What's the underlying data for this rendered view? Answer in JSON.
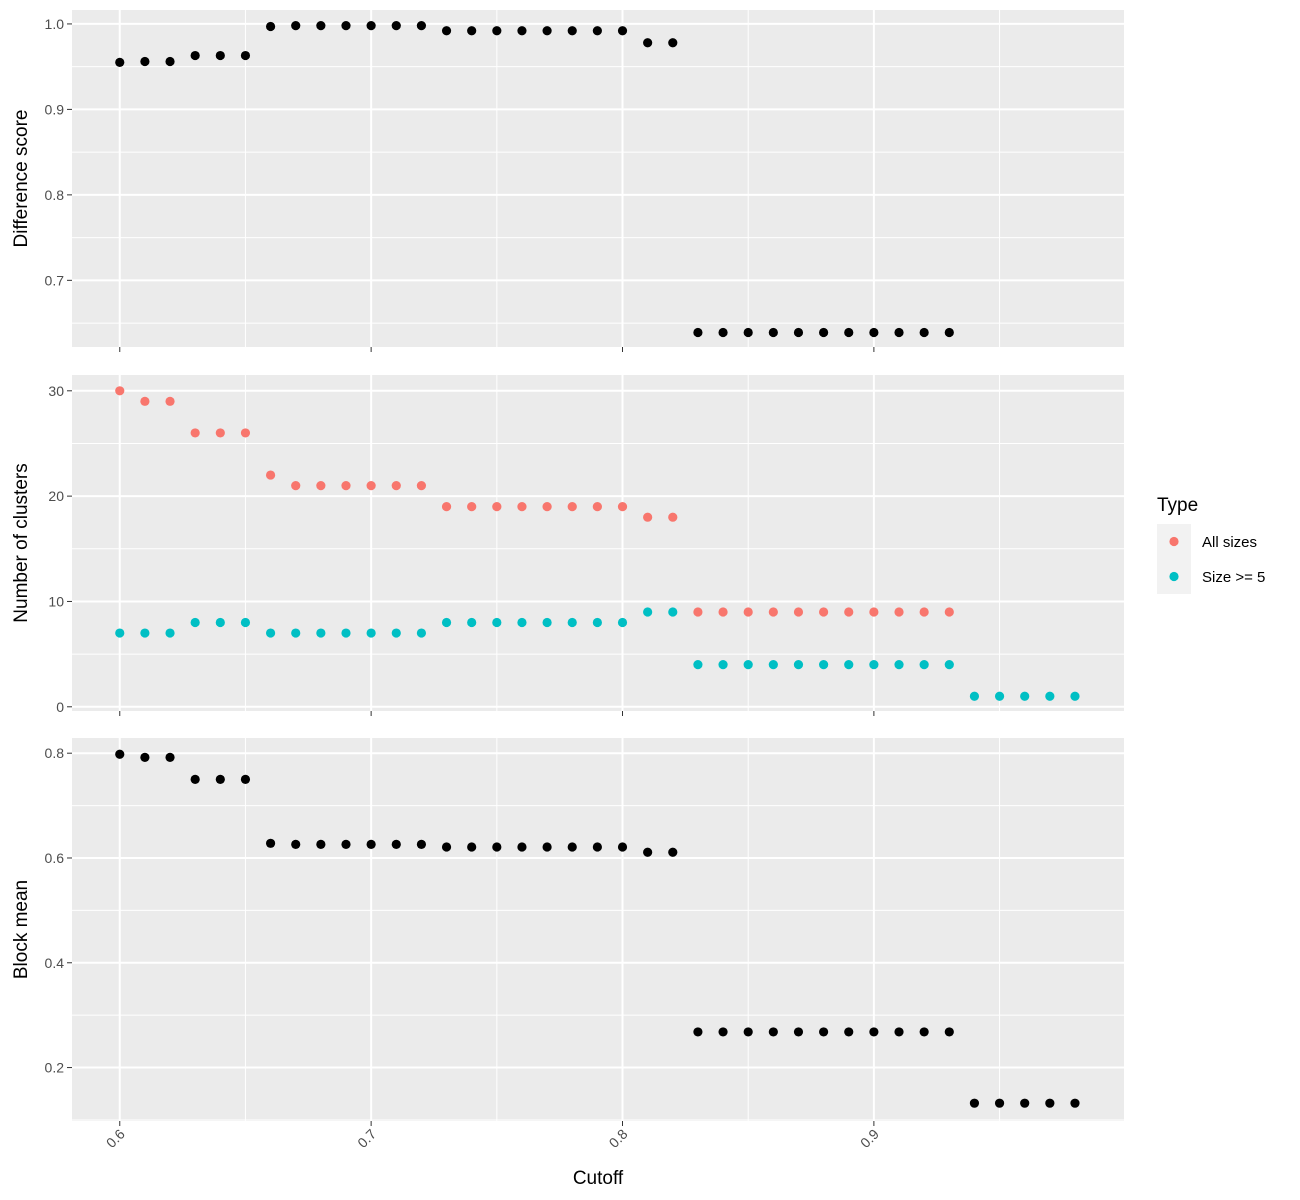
{
  "chart_data": {
    "type": "scatter",
    "xlabel": "Cutoff",
    "x_ticks": [
      0.6,
      0.7,
      0.8,
      0.9
    ],
    "xlim": [
      0.581,
      0.9995
    ],
    "grid": true,
    "legend": {
      "title": "Type",
      "position": "right",
      "entries": [
        {
          "label": "All sizes",
          "color": "#F8766D"
        },
        {
          "label": "Size >= 5",
          "color": "#00BFC4"
        }
      ]
    },
    "panels": [
      {
        "ylabel": "Difference score",
        "ylim": [
          0.622,
          1.0163
        ],
        "y_ticks": [
          0.7,
          0.8,
          0.9,
          1.0
        ],
        "y_tick_labels": [
          "0.7",
          "0.8",
          "0.9",
          "1.0"
        ],
        "series": [
          {
            "color": "#000000",
            "x": [
              0.6,
              0.61,
              0.62,
              0.63,
              0.64,
              0.65,
              0.66,
              0.67,
              0.68,
              0.69,
              0.7,
              0.71,
              0.72,
              0.73,
              0.74,
              0.75,
              0.76,
              0.77,
              0.78,
              0.79,
              0.8,
              0.81,
              0.82,
              0.83,
              0.84,
              0.85,
              0.86,
              0.87,
              0.88,
              0.89,
              0.9,
              0.91,
              0.92,
              0.93
            ],
            "y": [
              0.955,
              0.956,
              0.956,
              0.963,
              0.963,
              0.963,
              0.997,
              0.998,
              0.998,
              0.998,
              0.998,
              0.998,
              0.998,
              0.992,
              0.992,
              0.992,
              0.992,
              0.992,
              0.992,
              0.992,
              0.992,
              0.978,
              0.978,
              0.639,
              0.639,
              0.639,
              0.639,
              0.639,
              0.639,
              0.639,
              0.639,
              0.639,
              0.639,
              0.639
            ]
          }
        ]
      },
      {
        "ylabel": "Number of clusters",
        "ylim": [
          -0.4,
          31.5
        ],
        "y_ticks": [
          0,
          10,
          20,
          30
        ],
        "y_tick_labels": [
          "0",
          "10",
          "20",
          "30"
        ],
        "series": [
          {
            "name": "All sizes",
            "color": "#F8766D",
            "x": [
              0.6,
              0.61,
              0.62,
              0.63,
              0.64,
              0.65,
              0.66,
              0.67,
              0.68,
              0.69,
              0.7,
              0.71,
              0.72,
              0.73,
              0.74,
              0.75,
              0.76,
              0.77,
              0.78,
              0.79,
              0.8,
              0.81,
              0.82,
              0.83,
              0.84,
              0.85,
              0.86,
              0.87,
              0.88,
              0.89,
              0.9,
              0.91,
              0.92,
              0.93
            ],
            "y": [
              30,
              29,
              29,
              26,
              26,
              26,
              22,
              21,
              21,
              21,
              21,
              21,
              21,
              19,
              19,
              19,
              19,
              19,
              19,
              19,
              19,
              18,
              18,
              9,
              9,
              9,
              9,
              9,
              9,
              9,
              9,
              9,
              9,
              9
            ]
          },
          {
            "name": "Size >= 5",
            "color": "#00BFC4",
            "x": [
              0.6,
              0.61,
              0.62,
              0.63,
              0.64,
              0.65,
              0.66,
              0.67,
              0.68,
              0.69,
              0.7,
              0.71,
              0.72,
              0.73,
              0.74,
              0.75,
              0.76,
              0.77,
              0.78,
              0.79,
              0.8,
              0.81,
              0.82,
              0.83,
              0.84,
              0.85,
              0.86,
              0.87,
              0.88,
              0.89,
              0.9,
              0.91,
              0.92,
              0.93,
              0.94,
              0.95,
              0.96,
              0.97,
              0.98
            ],
            "y": [
              7,
              7,
              7,
              8,
              8,
              8,
              7,
              7,
              7,
              7,
              7,
              7,
              7,
              8,
              8,
              8,
              8,
              8,
              8,
              8,
              8,
              9,
              9,
              4,
              4,
              4,
              4,
              4,
              4,
              4,
              4,
              4,
              4,
              4,
              1,
              1,
              1,
              1,
              1
            ]
          }
        ]
      },
      {
        "ylabel": "Block mean",
        "ylim": [
          0.098,
          0.829
        ],
        "y_ticks": [
          0.2,
          0.4,
          0.6,
          0.8
        ],
        "y_tick_labels": [
          "0.2",
          "0.4",
          "0.6",
          "0.8"
        ],
        "series": [
          {
            "color": "#000000",
            "x": [
              0.6,
              0.61,
              0.62,
              0.63,
              0.64,
              0.65,
              0.66,
              0.67,
              0.68,
              0.69,
              0.7,
              0.71,
              0.72,
              0.73,
              0.74,
              0.75,
              0.76,
              0.77,
              0.78,
              0.79,
              0.8,
              0.81,
              0.82,
              0.83,
              0.84,
              0.85,
              0.86,
              0.87,
              0.88,
              0.89,
              0.9,
              0.91,
              0.92,
              0.93,
              0.94,
              0.95,
              0.96,
              0.97,
              0.98
            ],
            "y": [
              0.798,
              0.792,
              0.792,
              0.75,
              0.75,
              0.75,
              0.628,
              0.626,
              0.626,
              0.626,
              0.626,
              0.626,
              0.626,
              0.621,
              0.621,
              0.621,
              0.621,
              0.621,
              0.621,
              0.621,
              0.621,
              0.611,
              0.611,
              0.268,
              0.268,
              0.268,
              0.268,
              0.268,
              0.268,
              0.268,
              0.268,
              0.268,
              0.268,
              0.268,
              0.132,
              0.132,
              0.132,
              0.132,
              0.132
            ]
          }
        ]
      }
    ]
  }
}
